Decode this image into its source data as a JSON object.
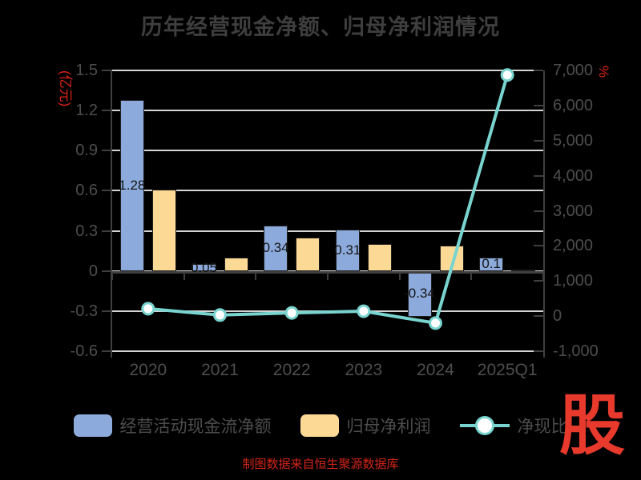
{
  "title": "历年经营现金净额、归母净利润情况",
  "caption": "制图数据来自恒生聚源数据库",
  "logo_text": "股",
  "colors": {
    "background": "#000000",
    "title_text": "#3e3e3e",
    "axis_text": "#4d4d4d",
    "grid_line": "#d5d5d5",
    "axis_line": "#3f3f3f",
    "bar_blue": "#8cabdc",
    "bar_yellow": "#fcda95",
    "line_cyan": "#79d4cf",
    "accent_red": "#dd2318",
    "logo_red": "#e73a2d",
    "bar_label_text": "#141414"
  },
  "legend": {
    "items": [
      {
        "label": "经营活动现金流净额",
        "type": "bar",
        "color": "#8cabdc"
      },
      {
        "label": "归母净利润",
        "type": "bar",
        "color": "#fcda95"
      },
      {
        "label": "净现比",
        "type": "line",
        "color": "#79d4cf"
      }
    ]
  },
  "chart_data": {
    "type": "bar",
    "subtype": "grouped bars with overlay line on secondary axis",
    "title": "历年经营现金净额、归母净利润情况",
    "categories": [
      "2020",
      "2021",
      "2022",
      "2023",
      "2024",
      "2025Q1"
    ],
    "series": [
      {
        "name": "经营活动现金流净额",
        "type": "bar",
        "axis": "left",
        "color": "#8cabdc",
        "values": [
          1.28,
          0.05,
          0.34,
          0.31,
          -0.34,
          0.1
        ],
        "labels": [
          "1.28",
          "0.05",
          "0.34",
          "0.31",
          "-0.34",
          "0.1"
        ]
      },
      {
        "name": "归母净利润",
        "type": "bar",
        "axis": "left",
        "color": "#fcda95",
        "values": [
          0.61,
          0.1,
          0.25,
          0.2,
          0.19,
          0.01
        ]
      },
      {
        "name": "净现比",
        "type": "line",
        "axis": "right",
        "color": "#79d4cf",
        "values": [
          210,
          30,
          90,
          140,
          -200,
          6870
        ]
      }
    ],
    "left_axis": {
      "unit": "(亿元)",
      "min": -0.6,
      "max": 1.5,
      "tick_values": [
        1.5,
        1.2,
        0.9,
        0.6,
        0.3,
        0,
        -0.3,
        -0.6
      ],
      "tick_labels": [
        "1.5",
        "1.2",
        "0.9",
        "0.6",
        "0.3",
        "0",
        "-0.3",
        "-0.6"
      ]
    },
    "right_axis": {
      "unit": "%",
      "min": -1000,
      "max": 7000,
      "tick_values": [
        7000,
        6000,
        5000,
        4000,
        3000,
        2000,
        1000,
        0,
        -1000
      ],
      "tick_labels": [
        "7,000",
        "6,000",
        "5,000",
        "4,000",
        "3,000",
        "2,000",
        "1,000",
        "0",
        "-1,000"
      ]
    },
    "grid": "horizontal gridlines at left-axis ticks",
    "legend_position": "bottom"
  }
}
